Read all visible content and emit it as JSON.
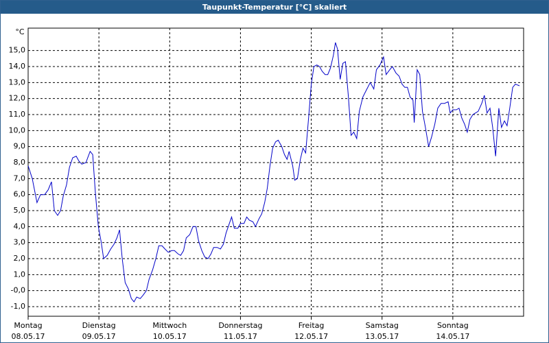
{
  "chart_data": {
    "type": "line",
    "title": "Taupunkt-Temperatur [°C] skaliert",
    "ylabel": "°C",
    "xlim": [
      0,
      168
    ],
    "ylim": [
      -1.6,
      16.4
    ],
    "grid": true,
    "xticks": [
      {
        "value": 0,
        "label": "Montag"
      },
      {
        "value": 24,
        "label": "Dienstag"
      },
      {
        "value": 48,
        "label": "Mittwoch"
      },
      {
        "value": 72,
        "label": "Donnerstag"
      },
      {
        "value": 96,
        "label": "Freitag"
      },
      {
        "value": 120,
        "label": "Samstag"
      },
      {
        "value": 144,
        "label": "Sonntag"
      }
    ],
    "xtick_dates": [
      "08.05.17",
      "09.05.17",
      "10.05.17",
      "11.05.17",
      "12.05.17",
      "13.05.17",
      "14.05.17"
    ],
    "yticks": [
      {
        "value": -1,
        "label": "-1,0"
      },
      {
        "value": 0,
        "label": "-0,0"
      },
      {
        "value": 1,
        "label": "1,0"
      },
      {
        "value": 2,
        "label": "2,0"
      },
      {
        "value": 3,
        "label": "3,0"
      },
      {
        "value": 4,
        "label": "4,0"
      },
      {
        "value": 5,
        "label": "5,0"
      },
      {
        "value": 6,
        "label": "6,0"
      },
      {
        "value": 7,
        "label": "7,0"
      },
      {
        "value": 8,
        "label": "8,0"
      },
      {
        "value": 9,
        "label": "9,0"
      },
      {
        "value": 10,
        "label": "10,0"
      },
      {
        "value": 11,
        "label": "11,0"
      },
      {
        "value": 12,
        "label": "12,0"
      },
      {
        "value": 13,
        "label": "13,0"
      },
      {
        "value": 14,
        "label": "14,0"
      },
      {
        "value": 15,
        "label": "15,0"
      }
    ],
    "x": [
      0,
      1.4,
      3.0,
      4.2,
      5.6,
      6.8,
      7.9,
      8.9,
      10.0,
      11.0,
      11.9,
      13.0,
      14.0,
      15.1,
      16.3,
      17.2,
      18.2,
      19.6,
      21.0,
      21.9,
      22.8,
      23.8,
      24.7,
      25.6,
      26.8,
      28.0,
      29.1,
      30.1,
      31.0,
      31.9,
      32.9,
      34.0,
      35.0,
      35.9,
      36.8,
      38.0,
      38.9,
      40.1,
      41.0,
      42.2,
      43.3,
      44.3,
      45.4,
      46.4,
      47.5,
      48.7,
      49.6,
      50.8,
      51.7,
      52.7,
      53.6,
      54.8,
      55.9,
      56.9,
      57.8,
      58.9,
      59.9,
      61.0,
      62.0,
      62.9,
      64.1,
      65.2,
      66.2,
      67.1,
      69.0,
      69.9,
      71.1,
      72.0,
      73.2,
      74.1,
      75.0,
      76.2,
      77.1,
      78.3,
      79.2,
      80.2,
      81.1,
      82.0,
      82.9,
      83.9,
      84.8,
      86.0,
      86.9,
      87.8,
      88.5,
      89.7,
      90.4,
      91.3,
      92.3,
      93.2,
      94.1,
      95.1,
      96.0,
      96.9,
      97.9,
      98.8,
      99.7,
      100.7,
      101.6,
      102.5,
      103.5,
      104.2,
      104.9,
      105.8,
      106.7,
      107.6,
      108.6,
      109.5,
      110.4,
      111.4,
      112.3,
      113.5,
      114.6,
      116.0,
      117.2,
      118.1,
      119.3,
      120.5,
      121.4,
      122.6,
      123.5,
      124.7,
      125.8,
      126.8,
      127.7,
      128.6,
      129.5,
      130.5,
      130.9,
      131.9,
      132.8,
      133.7,
      134.7,
      135.8,
      136.8,
      137.9,
      138.9,
      140.0,
      141.2,
      142.4,
      143.1,
      144.0,
      145.2,
      146.1,
      147.0,
      148.0,
      148.9,
      149.8,
      150.8,
      151.7,
      152.6,
      153.8,
      154.7,
      155.6,
      156.6,
      157.5,
      158.5,
      159.6,
      160.5,
      161.5,
      162.4,
      163.3,
      164.3,
      165.2,
      166.6
    ],
    "series": [
      {
        "name": "Taupunkt",
        "color": "#0000c8",
        "values": [
          7.8,
          7.0,
          5.5,
          6.0,
          6.0,
          6.3,
          6.8,
          5.0,
          4.7,
          5.0,
          5.9,
          6.6,
          7.7,
          8.3,
          8.4,
          8.1,
          7.9,
          8.0,
          8.7,
          8.5,
          6.1,
          4.0,
          3.1,
          2.0,
          2.2,
          2.6,
          2.9,
          3.3,
          3.8,
          2.0,
          0.5,
          0.1,
          -0.5,
          -0.7,
          -0.4,
          -0.5,
          -0.3,
          0.0,
          0.7,
          1.3,
          2.0,
          2.8,
          2.8,
          2.6,
          2.4,
          2.5,
          2.5,
          2.3,
          2.2,
          2.5,
          3.3,
          3.5,
          4.0,
          4.0,
          3.1,
          2.5,
          2.1,
          2.0,
          2.3,
          2.7,
          2.7,
          2.6,
          2.9,
          3.6,
          4.6,
          3.9,
          3.9,
          4.2,
          4.2,
          4.6,
          4.4,
          4.3,
          4.0,
          4.5,
          4.8,
          5.5,
          6.4,
          7.8,
          8.9,
          9.3,
          9.4,
          9.0,
          8.5,
          8.2,
          8.7,
          7.8,
          6.9,
          7.0,
          8.2,
          8.9,
          8.6,
          10.8,
          12.9,
          14.0,
          14.1,
          14.0,
          13.7,
          13.5,
          13.5,
          13.9,
          14.7,
          15.5,
          15.1,
          13.2,
          14.2,
          14.3,
          12.1,
          9.7,
          9.9,
          9.5,
          11.2,
          12.1,
          12.5,
          13.0,
          12.6,
          13.8,
          14.1,
          14.6,
          13.5,
          13.8,
          14.0,
          13.6,
          13.4,
          12.9,
          12.7,
          12.7,
          12.1,
          11.9,
          10.5,
          13.8,
          13.5,
          11.2,
          10.2,
          9.0,
          9.6,
          10.4,
          11.4,
          11.7,
          11.7,
          11.8,
          11.1,
          11.3,
          11.3,
          11.4,
          10.8,
          10.4,
          9.9,
          10.7,
          11.0,
          11.1,
          11.2,
          11.7,
          12.2,
          11.1,
          11.4,
          10.2,
          8.4,
          11.4,
          10.2,
          10.6,
          10.3,
          11.4,
          12.7,
          12.9,
          12.8
        ]
      }
    ]
  }
}
